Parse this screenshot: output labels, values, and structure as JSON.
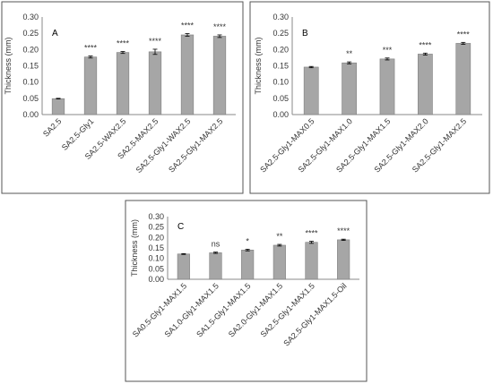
{
  "colors": {
    "bar": "#a6a6a6",
    "bar_edge": "#7f7f7f",
    "frame": "#555555"
  },
  "chart_data": [
    {
      "type": "bar",
      "panel_label": "A",
      "ylabel": "Thickness (mm)",
      "ylim": [
        0,
        0.3
      ],
      "yticks": [
        "0.00",
        "0.05",
        "0.10",
        "0.15",
        "0.20",
        "0.25",
        "0.30"
      ],
      "categories": [
        "SA2.5",
        "SA2.5-Gly1",
        "SA2.5-WAX2.5",
        "SA2.5-MAX2.5",
        "SA2.5-Gly1-WAX2.5",
        "SA2.5-Gly1-MAX2.5"
      ],
      "values": [
        0.049,
        0.177,
        0.191,
        0.193,
        0.245,
        0.241
      ],
      "errors": [
        0.001,
        0.003,
        0.003,
        0.008,
        0.004,
        0.004
      ],
      "significance": [
        "",
        "****",
        "****",
        "****",
        "****",
        "****"
      ],
      "grid": false
    },
    {
      "type": "bar",
      "panel_label": "B",
      "ylabel": "Thickness (mm)",
      "ylim": [
        0,
        0.3
      ],
      "yticks": [
        "0.00",
        "0.05",
        "0.10",
        "0.15",
        "0.20",
        "0.25",
        "0.30"
      ],
      "categories": [
        "SA2.5-Gly1-MAX0.5",
        "SA2.5-Gly1-MAX1.0",
        "SA2.5-Gly1-MAX1.5",
        "SA2.5-Gly1-MAX2.0",
        "SA2.5-Gly1-MAX2.5"
      ],
      "values": [
        0.146,
        0.159,
        0.171,
        0.186,
        0.219
      ],
      "errors": [
        0.002,
        0.003,
        0.003,
        0.003,
        0.003
      ],
      "significance": [
        "",
        "**",
        "***",
        "****",
        "****"
      ],
      "grid": false
    },
    {
      "type": "bar",
      "panel_label": "C",
      "ylabel": "Thickness (mm)",
      "ylim": [
        0,
        0.3
      ],
      "yticks": [
        "0.00",
        "0.05",
        "0.10",
        "0.15",
        "0.20",
        "0.25",
        "0.30"
      ],
      "categories": [
        "SA0.5-Gly1-MAX1.5",
        "SA1.0-Gly1-MAX1.5",
        "SA1.5-Gly1-MAX1.5",
        "SA2.0-Gly1-MAX1.5",
        "SA2.5-Gly1-MAX1.5",
        "SA2.5-Gly1-MAX1.5-Oil"
      ],
      "values": [
        0.121,
        0.127,
        0.14,
        0.163,
        0.177,
        0.189
      ],
      "errors": [
        0.002,
        0.003,
        0.004,
        0.004,
        0.005,
        0.003
      ],
      "significance": [
        "",
        "ns",
        "*",
        "**",
        "****",
        "****"
      ],
      "grid": false
    }
  ]
}
